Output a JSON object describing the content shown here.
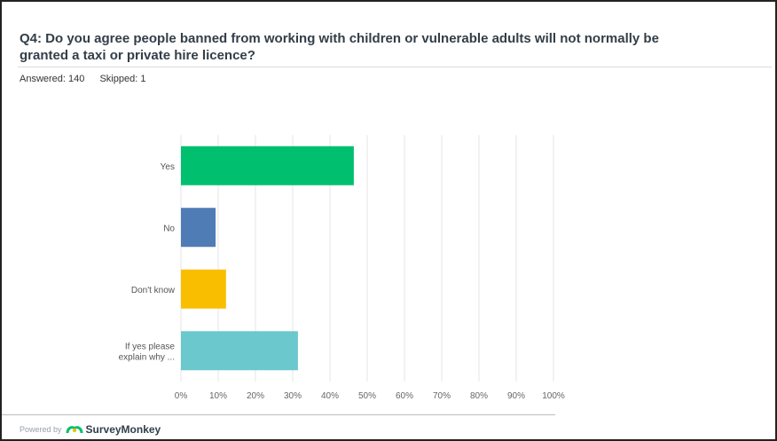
{
  "question": {
    "title": "Q4: Do you agree people banned from working with children or vulnerable adults will not normally be granted a taxi or private hire licence?"
  },
  "stats": {
    "answered": "Answered: 140",
    "skipped": "Skipped: 1"
  },
  "footer": {
    "powered_by": "Powered by",
    "brand": "SurveyMonkey"
  },
  "chart_data": {
    "type": "bar",
    "orientation": "horizontal",
    "categories": [
      "Yes",
      "No",
      "Don't know",
      "If yes please explain why ..."
    ],
    "category_lines": [
      [
        "Yes"
      ],
      [
        "No"
      ],
      [
        "Don't know"
      ],
      [
        "If yes please",
        "explain why ..."
      ]
    ],
    "values": [
      46.4,
      9.3,
      12.1,
      31.4
    ],
    "colors": [
      "#00bf6f",
      "#507cb6",
      "#f9be00",
      "#6bc8cd"
    ],
    "xticks": [
      "0%",
      "10%",
      "20%",
      "30%",
      "40%",
      "50%",
      "60%",
      "70%",
      "80%",
      "90%",
      "100%"
    ],
    "xlim": [
      0,
      100
    ],
    "grid": true
  }
}
